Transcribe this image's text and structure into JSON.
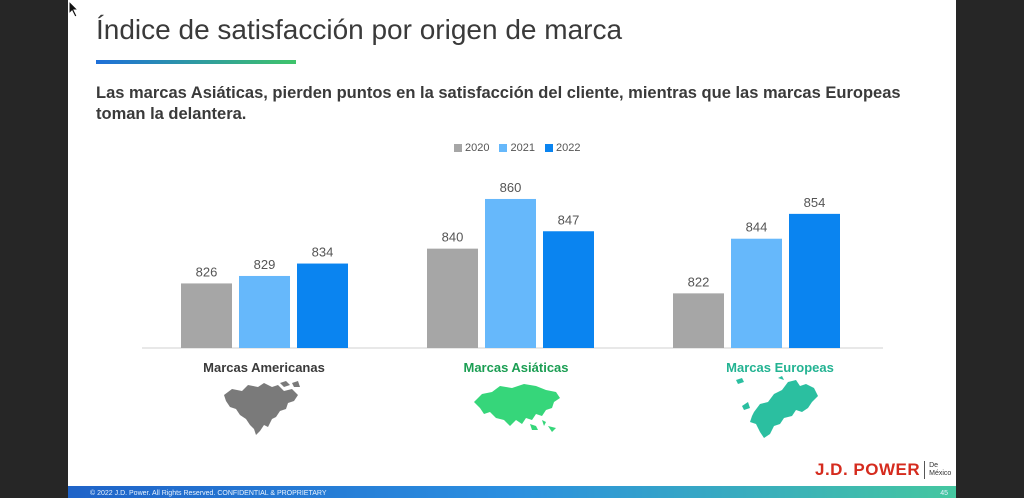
{
  "slide": {
    "title": "Índice de satisfacción por origen de marca",
    "subtitle": "Las marcas Asiáticas, pierden puntos en la satisfacción del cliente, mientras  que las marcas Europeas toman la delantera.",
    "footer": "© 2022 J.D. Power. All Rights Reserved. CONFIDENTIAL & PROPRIETARY",
    "page_number": "45",
    "brand": {
      "name": "J.D. POWER",
      "sub_line1": "De",
      "sub_line2": "México"
    }
  },
  "colors": {
    "2020": "#a6a6a6",
    "2021": "#66b8fb",
    "2022": "#0a84f0",
    "americas_map": "#7a7a7a",
    "asia_map": "#36d67a",
    "europe_map": "#2bbfa0",
    "label_americas": "#3a3a3a",
    "label_asia": "#1b9e53",
    "label_europe": "#23b392"
  },
  "icons": {
    "americas": "north-america-map-icon",
    "asia": "asia-map-icon",
    "europe": "europe-map-icon"
  },
  "chart_data": {
    "type": "bar",
    "categories": [
      "Marcas Americanas",
      "Marcas Asiáticas",
      "Marcas Europeas"
    ],
    "series": [
      {
        "name": "2020",
        "values": [
          826,
          840,
          822
        ]
      },
      {
        "name": "2021",
        "values": [
          829,
          860,
          844
        ]
      },
      {
        "name": "2022",
        "values": [
          834,
          847,
          854
        ]
      }
    ],
    "data_labels": true,
    "legend_position": "top-center",
    "grid": false,
    "ylim": [
      800,
      862
    ]
  }
}
